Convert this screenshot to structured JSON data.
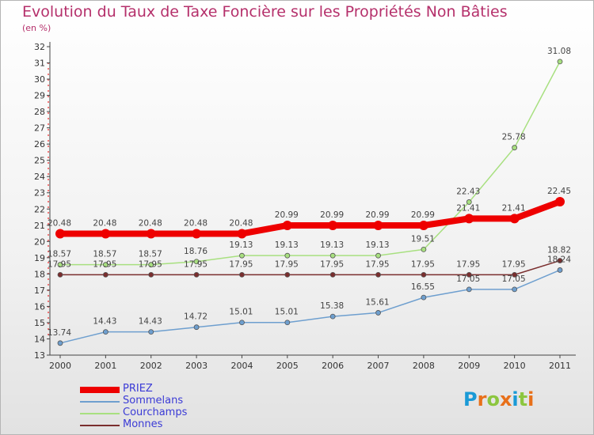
{
  "title": "Evolution du Taux de Taxe Foncière sur les Propriétés Non Bâties",
  "subtitle": "(en %)",
  "logo": {
    "text": "Proxiti",
    "letters": [
      "P",
      "r",
      "o",
      "x",
      "i",
      "t",
      "i"
    ],
    "colors": [
      "#1a9ad6",
      "#e8701a",
      "#8cc63f",
      "#e8701a",
      "#1a9ad6",
      "#8cc63f",
      "#e8701a"
    ]
  },
  "chart_data": {
    "type": "line",
    "x": [
      "2000",
      "2001",
      "2002",
      "2003",
      "2004",
      "2005",
      "2006",
      "2007",
      "2008",
      "2009",
      "2010",
      "2011"
    ],
    "ylim": [
      13,
      32
    ],
    "yticks": [
      13,
      14,
      15,
      16,
      17,
      18,
      19,
      20,
      21,
      22,
      23,
      24,
      25,
      26,
      27,
      28,
      29,
      30,
      31,
      32
    ],
    "grid": false,
    "legend_position": "bottom-left",
    "series": [
      {
        "name": "PRIEZ",
        "color": "#ee0000",
        "width": 8,
        "marker": 6,
        "values": [
          20.48,
          20.48,
          20.48,
          20.48,
          20.48,
          20.99,
          20.99,
          20.99,
          20.99,
          21.41,
          21.41,
          22.45
        ],
        "labels": [
          "20.48",
          "20.48",
          "20.48",
          "20.48",
          "20.48",
          "20.99",
          "20.99",
          "20.99",
          "20.99",
          "21.41",
          "21.41",
          "22.45"
        ]
      },
      {
        "name": "Sommelans",
        "color": "#6e9fcf",
        "width": 1.5,
        "marker": 3,
        "values": [
          13.74,
          14.43,
          14.43,
          14.72,
          15.01,
          15.01,
          15.38,
          15.61,
          16.55,
          17.05,
          17.05,
          18.24
        ],
        "labels": [
          "13.74",
          "14.43",
          "14.43",
          "14.72",
          "15.01",
          "15.01",
          "15.38",
          "15.61",
          "16.55",
          "17.05",
          "17.05",
          "18.24"
        ]
      },
      {
        "name": "Courchamps",
        "color": "#a8e080",
        "width": 1.5,
        "marker": 3,
        "values": [
          18.57,
          18.57,
          18.57,
          18.76,
          19.13,
          19.13,
          19.13,
          19.13,
          19.51,
          22.43,
          25.78,
          31.08
        ],
        "labels": [
          "18.57",
          "18.57",
          "18.57",
          "18.76",
          "19.13",
          "19.13",
          "19.13",
          "19.13",
          "19.51",
          "22.43",
          "25.78",
          "31.08"
        ]
      },
      {
        "name": "Monnes",
        "color": "#7a2e2e",
        "width": 1.5,
        "marker": 3,
        "values": [
          17.95,
          17.95,
          17.95,
          17.95,
          17.95,
          17.95,
          17.95,
          17.95,
          17.95,
          17.95,
          17.95,
          18.82
        ],
        "labels": [
          "17.95",
          "17.95",
          "17.95",
          "17.95",
          "17.95",
          "17.95",
          "17.95",
          "17.95",
          "17.95",
          "17.95",
          "17.95",
          "18.82"
        ]
      }
    ]
  }
}
